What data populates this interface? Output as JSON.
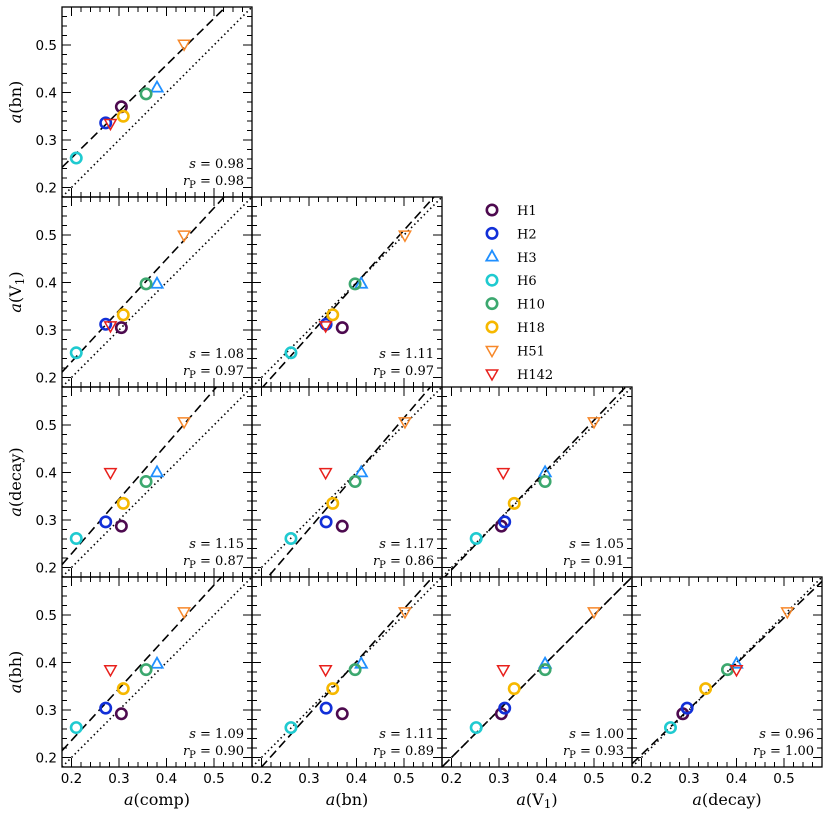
{
  "chart_data": {
    "type": "scatter",
    "title": "",
    "axis_range": [
      0.18,
      0.58
    ],
    "ticks": [
      0.2,
      0.3,
      0.4,
      0.5
    ],
    "tick_labels": [
      "0.2",
      "0.3",
      "0.4",
      "0.5"
    ],
    "minor_tick_step": 0.02,
    "variables": [
      "comp",
      "bn",
      "V1",
      "decay",
      "bh"
    ],
    "axis_labels": {
      "comp": "a(comp)",
      "bn": "a(bn)",
      "V1": "a(V₁)",
      "decay": "a(decay)",
      "bh": "a(bh)"
    },
    "x_variables": [
      "comp",
      "bn",
      "V1",
      "decay"
    ],
    "y_variables": [
      "bn",
      "V1",
      "decay",
      "bh"
    ],
    "series": [
      {
        "name": "H1",
        "marker": "circle",
        "color": "#4d0a4f",
        "values": {
          "comp": 0.305,
          "bn": 0.37,
          "V1": 0.305,
          "decay": 0.287,
          "bh": 0.292
        }
      },
      {
        "name": "H2",
        "marker": "circle",
        "color": "#1230d8",
        "values": {
          "comp": 0.272,
          "bn": 0.336,
          "V1": 0.312,
          "decay": 0.296,
          "bh": 0.304
        }
      },
      {
        "name": "H3",
        "marker": "triangle-up",
        "color": "#1f8fff",
        "values": {
          "comp": 0.38,
          "bn": 0.41,
          "V1": 0.397,
          "decay": 0.4,
          "bh": 0.397
        }
      },
      {
        "name": "H6",
        "marker": "circle",
        "color": "#1fcad0",
        "values": {
          "comp": 0.21,
          "bn": 0.262,
          "V1": 0.252,
          "decay": 0.261,
          "bh": 0.263
        }
      },
      {
        "name": "H10",
        "marker": "circle",
        "color": "#3ca86f",
        "values": {
          "comp": 0.357,
          "bn": 0.397,
          "V1": 0.397,
          "decay": 0.381,
          "bh": 0.385
        }
      },
      {
        "name": "H18",
        "marker": "circle",
        "color": "#f6b800",
        "values": {
          "comp": 0.309,
          "bn": 0.35,
          "V1": 0.332,
          "decay": 0.335,
          "bh": 0.345
        }
      },
      {
        "name": "H51",
        "marker": "triangle-down",
        "color": "#f7882a",
        "values": {
          "comp": 0.437,
          "bn": 0.502,
          "V1": 0.5,
          "decay": 0.507,
          "bh": 0.507
        }
      },
      {
        "name": "H142",
        "marker": "triangle-down",
        "color": "#e8201c",
        "values": {
          "comp": 0.282,
          "bn": 0.335,
          "V1": 0.309,
          "decay": 0.4,
          "bh": 0.385
        }
      }
    ],
    "panels": [
      {
        "x": "comp",
        "y": "bn",
        "s_label": "s = 0.98",
        "r_label": "r_P = 0.98",
        "slope": 0.98,
        "fit_intercept": 0.066
      },
      {
        "x": "comp",
        "y": "V1",
        "s_label": "s = 1.08",
        "r_label": "r_P = 0.97",
        "slope": 1.08,
        "fit_intercept": 0.017
      },
      {
        "x": "bn",
        "y": "V1",
        "s_label": "s = 1.11",
        "r_label": "r_P = 0.97",
        "slope": 1.11,
        "fit_intercept": -0.045
      },
      {
        "x": "comp",
        "y": "decay",
        "s_label": "s = 1.15",
        "r_label": "r_P = 0.87",
        "slope": 1.15,
        "fit_intercept": -0.001
      },
      {
        "x": "bn",
        "y": "decay",
        "s_label": "s = 1.17",
        "r_label": "r_P = 0.86",
        "slope": 1.17,
        "fit_intercept": -0.07
      },
      {
        "x": "V1",
        "y": "decay",
        "s_label": "s = 1.05",
        "r_label": "r_P = 0.91",
        "slope": 1.05,
        "fit_intercept": -0.015
      },
      {
        "x": "comp",
        "y": "bh",
        "s_label": "s = 1.09",
        "r_label": "r_P = 0.90",
        "slope": 1.09,
        "fit_intercept": 0.018
      },
      {
        "x": "bn",
        "y": "bh",
        "s_label": "s = 1.11",
        "r_label": "r_P = 0.89",
        "slope": 1.11,
        "fit_intercept": -0.042
      },
      {
        "x": "V1",
        "y": "bh",
        "s_label": "s = 1.00",
        "r_label": "r_P = 0.93",
        "slope": 1.0,
        "fit_intercept": 0.0
      },
      {
        "x": "decay",
        "y": "bh",
        "s_label": "s = 0.96",
        "r_label": "r_P = 1.00",
        "slope": 0.96,
        "fit_intercept": 0.014
      }
    ],
    "reference_line": "one-to-one (dotted)",
    "fit_line": "best fit (dashed)",
    "legend_location": "upper-right (empty grid area)"
  }
}
